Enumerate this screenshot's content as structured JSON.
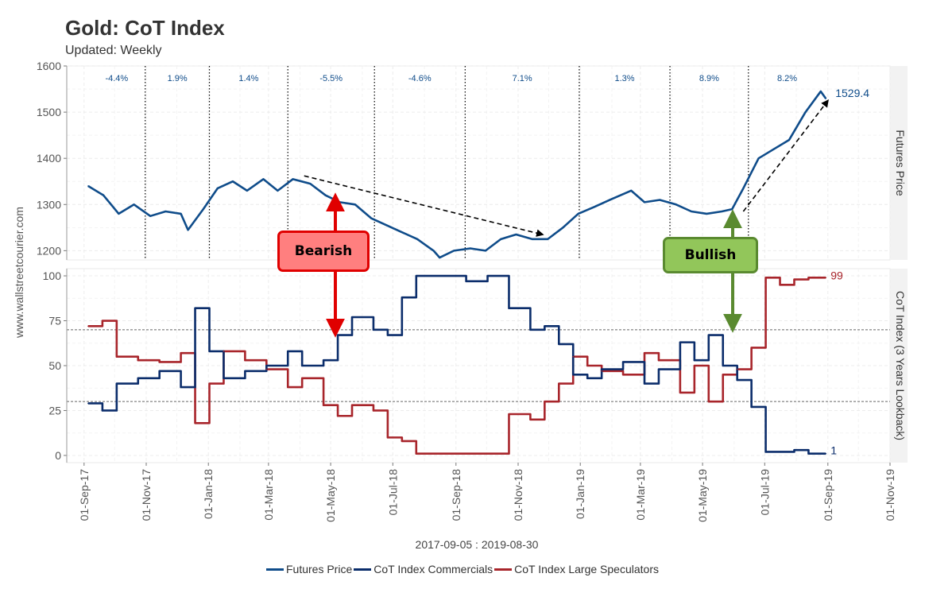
{
  "title": "Gold: CoT Index",
  "subtitle": "Updated: Weekly",
  "watermark": "www.wallstreetcourier.com",
  "date_range": "2017-09-05 : 2019-08-30",
  "callouts": {
    "bearish": "Bearish",
    "bullish": "Bullish"
  },
  "colors": {
    "futures": "#0f4c8a",
    "commercials": "#0b2d6b",
    "speculators": "#a8252b",
    "bearish_fill": "#ff7f7f",
    "bullish_fill": "#92c65a"
  },
  "chart_data": [
    {
      "type": "line",
      "title": "Gold: CoT Index",
      "panel": "top",
      "ylabel": "Futures Price",
      "ylim": [
        1180,
        1600
      ],
      "yticks": [
        1200,
        1300,
        1400,
        1500,
        1600
      ],
      "grid": true,
      "last_value_label": "1529.4",
      "interval_returns": [
        "-4.4%",
        "1.9%",
        "1.4%",
        "-5.5%",
        "-4.6%",
        "7.1%",
        "1.3%",
        "8.9%",
        "8.2%"
      ],
      "interval_dividers": [
        "2017-10-31",
        "2018-01-02",
        "2018-03-20",
        "2018-06-13",
        "2018-09-10",
        "2018-12-31",
        "2019-03-30",
        "2019-06-15"
      ],
      "series": [
        {
          "name": "Futures Price",
          "x": [
            "2017-09-05",
            "2017-09-20",
            "2017-10-05",
            "2017-10-20",
            "2017-11-05",
            "2017-11-20",
            "2017-12-05",
            "2017-12-12",
            "2017-12-27",
            "2018-01-10",
            "2018-01-25",
            "2018-02-08",
            "2018-02-24",
            "2018-03-10",
            "2018-03-25",
            "2018-04-11",
            "2018-04-26",
            "2018-05-10",
            "2018-05-25",
            "2018-06-10",
            "2018-06-25",
            "2018-07-10",
            "2018-07-25",
            "2018-08-10",
            "2018-08-16",
            "2018-08-30",
            "2018-09-15",
            "2018-09-30",
            "2018-10-15",
            "2018-10-30",
            "2018-11-15",
            "2018-11-30",
            "2018-12-15",
            "2018-12-30",
            "2019-01-15",
            "2019-01-30",
            "2019-02-20",
            "2019-03-05",
            "2019-03-20",
            "2019-04-05",
            "2019-04-20",
            "2019-05-05",
            "2019-05-20",
            "2019-05-30",
            "2019-06-10",
            "2019-06-25",
            "2019-07-10",
            "2019-07-25",
            "2019-08-10",
            "2019-08-25",
            "2019-08-30"
          ],
          "values": [
            1340,
            1320,
            1280,
            1300,
            1275,
            1285,
            1280,
            1245,
            1290,
            1335,
            1350,
            1330,
            1355,
            1330,
            1355,
            1345,
            1320,
            1305,
            1300,
            1270,
            1255,
            1240,
            1225,
            1200,
            1185,
            1200,
            1205,
            1200,
            1225,
            1235,
            1225,
            1225,
            1250,
            1280,
            1295,
            1310,
            1330,
            1305,
            1310,
            1300,
            1285,
            1280,
            1285,
            1290,
            1335,
            1400,
            1420,
            1440,
            1500,
            1545,
            1529.4
          ]
        },
        {
          "name": "Bearish trend",
          "x": [
            "2018-04-05",
            "2018-11-25"
          ],
          "values": [
            1362,
            1235
          ]
        },
        {
          "name": "Bullish trend",
          "x": [
            "2019-06-10",
            "2019-09-01"
          ],
          "values": [
            1285,
            1525
          ]
        }
      ]
    },
    {
      "type": "line",
      "panel": "bottom",
      "ylabel": "CoT Index (3 Years Lookback)",
      "ylim": [
        -4,
        104
      ],
      "yticks": [
        0,
        25,
        50,
        75,
        100
      ],
      "reference_lines": [
        30,
        70
      ],
      "grid": true,
      "xlim": [
        "2017-08-15",
        "2019-11-01"
      ],
      "xticks": [
        "01-Sep-17",
        "01-Nov-17",
        "01-Jan-18",
        "01-Mar-18",
        "01-May-18",
        "01-Jul-18",
        "01-Sep-18",
        "01-Nov-18",
        "01-Jan-19",
        "01-Mar-19",
        "01-May-19",
        "01-Jul-19",
        "01-Sep-19",
        "01-Nov-19"
      ],
      "series": [
        {
          "name": "CoT Index Commercials",
          "end_label": "1",
          "x": [
            "2017-09-05",
            "2017-09-19",
            "2017-10-03",
            "2017-10-24",
            "2017-11-14",
            "2017-12-05",
            "2017-12-19",
            "2018-01-02",
            "2018-01-16",
            "2018-02-06",
            "2018-02-27",
            "2018-03-20",
            "2018-04-03",
            "2018-04-24",
            "2018-05-08",
            "2018-05-22",
            "2018-06-12",
            "2018-06-26",
            "2018-07-10",
            "2018-07-24",
            "2018-08-07",
            "2018-08-21",
            "2018-09-11",
            "2018-10-02",
            "2018-10-23",
            "2018-11-13",
            "2018-11-27",
            "2018-12-11",
            "2018-12-25",
            "2019-01-08",
            "2019-01-22",
            "2019-02-12",
            "2019-03-05",
            "2019-03-19",
            "2019-04-09",
            "2019-04-23",
            "2019-05-07",
            "2019-05-21",
            "2019-06-04",
            "2019-06-18",
            "2019-07-02",
            "2019-07-16",
            "2019-07-30",
            "2019-08-13",
            "2019-08-30"
          ],
          "values": [
            29,
            25,
            40,
            43,
            47,
            38,
            82,
            58,
            43,
            47,
            50,
            58,
            50,
            53,
            67,
            77,
            70,
            67,
            88,
            100,
            100,
            100,
            97,
            100,
            82,
            70,
            72,
            62,
            45,
            43,
            48,
            52,
            40,
            48,
            63,
            53,
            67,
            50,
            42,
            27,
            2,
            2,
            3,
            1,
            1
          ]
        },
        {
          "name": "CoT Index Large Speculators",
          "end_label": "99",
          "x": [
            "2017-09-05",
            "2017-09-19",
            "2017-10-03",
            "2017-10-24",
            "2017-11-14",
            "2017-12-05",
            "2017-12-19",
            "2018-01-02",
            "2018-01-16",
            "2018-02-06",
            "2018-02-27",
            "2018-03-20",
            "2018-04-03",
            "2018-04-24",
            "2018-05-08",
            "2018-05-22",
            "2018-06-12",
            "2018-06-26",
            "2018-07-10",
            "2018-07-24",
            "2018-08-07",
            "2018-08-21",
            "2018-09-11",
            "2018-10-02",
            "2018-10-23",
            "2018-11-13",
            "2018-11-27",
            "2018-12-11",
            "2018-12-25",
            "2019-01-08",
            "2019-01-22",
            "2019-02-12",
            "2019-03-05",
            "2019-03-19",
            "2019-04-09",
            "2019-04-23",
            "2019-05-07",
            "2019-05-21",
            "2019-06-04",
            "2019-06-18",
            "2019-07-02",
            "2019-07-16",
            "2019-07-30",
            "2019-08-13",
            "2019-08-30"
          ],
          "values": [
            72,
            75,
            55,
            53,
            52,
            57,
            18,
            40,
            58,
            53,
            48,
            38,
            43,
            28,
            22,
            28,
            25,
            10,
            8,
            1,
            1,
            1,
            1,
            1,
            23,
            20,
            30,
            40,
            55,
            50,
            47,
            45,
            57,
            53,
            35,
            50,
            30,
            45,
            48,
            60,
            99,
            95,
            98,
            99,
            99
          ]
        }
      ]
    }
  ],
  "legend": [
    {
      "label": "Futures Price",
      "color": "#0f4c8a"
    },
    {
      "label": "CoT Index Commercials",
      "color": "#0b2d6b"
    },
    {
      "label": "CoT Index Large Speculators",
      "color": "#a8252b"
    }
  ]
}
